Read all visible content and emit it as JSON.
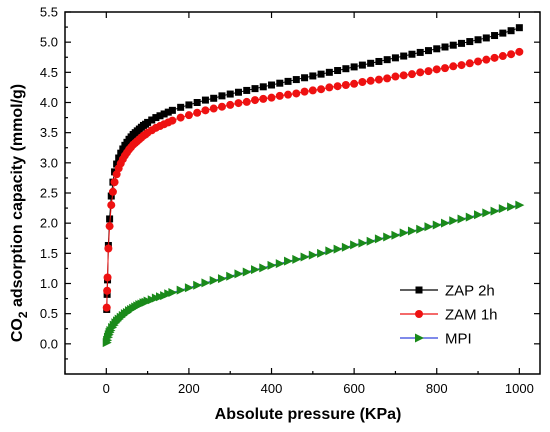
{
  "chart_data": {
    "type": "scatter",
    "title": "",
    "xlabel": "Absolute pressure (KPa)",
    "ylabel_main": "CO",
    "ylabel_sub": "2",
    "ylabel_rest": " adsorption capacity (mmol/g)",
    "xlim": [
      -100,
      1050
    ],
    "ylim": [
      -0.5,
      5.5
    ],
    "xticks": [
      0,
      200,
      400,
      600,
      800,
      1000
    ],
    "yticks": [
      0.0,
      0.5,
      1.0,
      1.5,
      2.0,
      2.5,
      3.0,
      3.5,
      4.0,
      4.5,
      5.0,
      5.5
    ],
    "ytick_labels": [
      "0.0",
      "0.5",
      "1.0",
      "1.5",
      "2.0",
      "2.5",
      "3.0",
      "3.5",
      "4.0",
      "4.5",
      "5.0",
      "5.5"
    ],
    "grid": false,
    "legend_position": "bottom-right",
    "series": [
      {
        "name": "ZAP  2h",
        "marker": "square",
        "color": "#000000",
        "line_color": "#000000",
        "x": [
          1,
          2,
          3,
          5,
          8,
          12,
          16,
          20,
          25,
          30,
          35,
          40,
          45,
          50,
          55,
          60,
          65,
          70,
          75,
          80,
          85,
          90,
          95,
          100,
          110,
          120,
          130,
          140,
          150,
          160,
          180,
          200,
          220,
          240,
          260,
          280,
          300,
          320,
          340,
          360,
          380,
          400,
          420,
          440,
          460,
          480,
          500,
          520,
          540,
          560,
          580,
          600,
          620,
          640,
          660,
          680,
          700,
          720,
          740,
          760,
          780,
          800,
          820,
          840,
          860,
          880,
          900,
          920,
          940,
          960,
          980,
          1000
        ],
        "y": [
          0.57,
          0.82,
          1.06,
          1.63,
          2.07,
          2.45,
          2.68,
          2.85,
          2.98,
          3.08,
          3.16,
          3.23,
          3.29,
          3.34,
          3.39,
          3.43,
          3.47,
          3.5,
          3.53,
          3.56,
          3.59,
          3.62,
          3.64,
          3.67,
          3.71,
          3.75,
          3.78,
          3.81,
          3.84,
          3.87,
          3.92,
          3.96,
          4.0,
          4.04,
          4.07,
          4.11,
          4.14,
          4.17,
          4.2,
          4.23,
          4.26,
          4.29,
          4.32,
          4.35,
          4.38,
          4.41,
          4.44,
          4.47,
          4.5,
          4.53,
          4.56,
          4.59,
          4.62,
          4.65,
          4.68,
          4.71,
          4.74,
          4.77,
          4.8,
          4.83,
          4.86,
          4.89,
          4.92,
          4.95,
          4.98,
          5.01,
          5.04,
          5.07,
          5.11,
          5.15,
          5.19,
          5.24
        ]
      },
      {
        "name": "ZAM 1h",
        "marker": "circle",
        "color": "#ee1111",
        "line_color": "#ee1111",
        "x": [
          1,
          2,
          3,
          5,
          8,
          12,
          16,
          20,
          25,
          30,
          35,
          40,
          45,
          50,
          55,
          60,
          65,
          70,
          75,
          80,
          85,
          90,
          95,
          100,
          110,
          120,
          130,
          140,
          150,
          160,
          180,
          200,
          220,
          240,
          260,
          280,
          300,
          320,
          340,
          360,
          380,
          400,
          420,
          440,
          460,
          480,
          500,
          520,
          540,
          560,
          580,
          600,
          620,
          640,
          660,
          680,
          700,
          720,
          740,
          760,
          780,
          800,
          820,
          840,
          860,
          880,
          900,
          920,
          940,
          960,
          980,
          1000
        ],
        "y": [
          0.6,
          0.88,
          1.1,
          1.58,
          1.95,
          2.3,
          2.52,
          2.68,
          2.81,
          2.91,
          2.99,
          3.06,
          3.12,
          3.17,
          3.22,
          3.26,
          3.3,
          3.33,
          3.36,
          3.39,
          3.42,
          3.45,
          3.47,
          3.5,
          3.54,
          3.58,
          3.61,
          3.64,
          3.67,
          3.7,
          3.75,
          3.79,
          3.83,
          3.87,
          3.9,
          3.93,
          3.96,
          3.99,
          4.01,
          4.04,
          4.06,
          4.08,
          4.11,
          4.13,
          4.15,
          4.18,
          4.2,
          4.22,
          4.25,
          4.27,
          4.29,
          4.31,
          4.34,
          4.36,
          4.38,
          4.4,
          4.43,
          4.45,
          4.47,
          4.5,
          4.52,
          4.55,
          4.57,
          4.6,
          4.62,
          4.65,
          4.68,
          4.71,
          4.74,
          4.77,
          4.8,
          4.84
        ]
      },
      {
        "name": "MPI",
        "marker": "triangle-right",
        "color": "#1a8a1a",
        "line_color": "#3344dd",
        "x": [
          1,
          2,
          4,
          6,
          8,
          10,
          14,
          18,
          22,
          26,
          30,
          35,
          40,
          45,
          50,
          55,
          60,
          65,
          70,
          75,
          80,
          85,
          90,
          95,
          100,
          110,
          120,
          130,
          140,
          150,
          160,
          180,
          200,
          220,
          240,
          260,
          280,
          300,
          320,
          340,
          360,
          380,
          400,
          420,
          440,
          460,
          480,
          500,
          520,
          540,
          560,
          580,
          600,
          620,
          640,
          660,
          680,
          700,
          720,
          740,
          760,
          780,
          800,
          820,
          840,
          860,
          880,
          900,
          920,
          940,
          960,
          980,
          1000
        ],
        "y": [
          0.02,
          0.06,
          0.11,
          0.15,
          0.19,
          0.22,
          0.27,
          0.31,
          0.35,
          0.38,
          0.41,
          0.44,
          0.47,
          0.5,
          0.52,
          0.55,
          0.57,
          0.59,
          0.61,
          0.63,
          0.65,
          0.66,
          0.68,
          0.69,
          0.71,
          0.73,
          0.76,
          0.78,
          0.8,
          0.83,
          0.85,
          0.89,
          0.93,
          0.97,
          1.01,
          1.05,
          1.08,
          1.12,
          1.16,
          1.19,
          1.23,
          1.26,
          1.3,
          1.33,
          1.37,
          1.4,
          1.44,
          1.47,
          1.5,
          1.54,
          1.57,
          1.6,
          1.64,
          1.67,
          1.7,
          1.74,
          1.77,
          1.8,
          1.84,
          1.87,
          1.9,
          1.94,
          1.97,
          2.0,
          2.04,
          2.07,
          2.1,
          2.14,
          2.17,
          2.2,
          2.24,
          2.27,
          2.3
        ]
      }
    ]
  }
}
